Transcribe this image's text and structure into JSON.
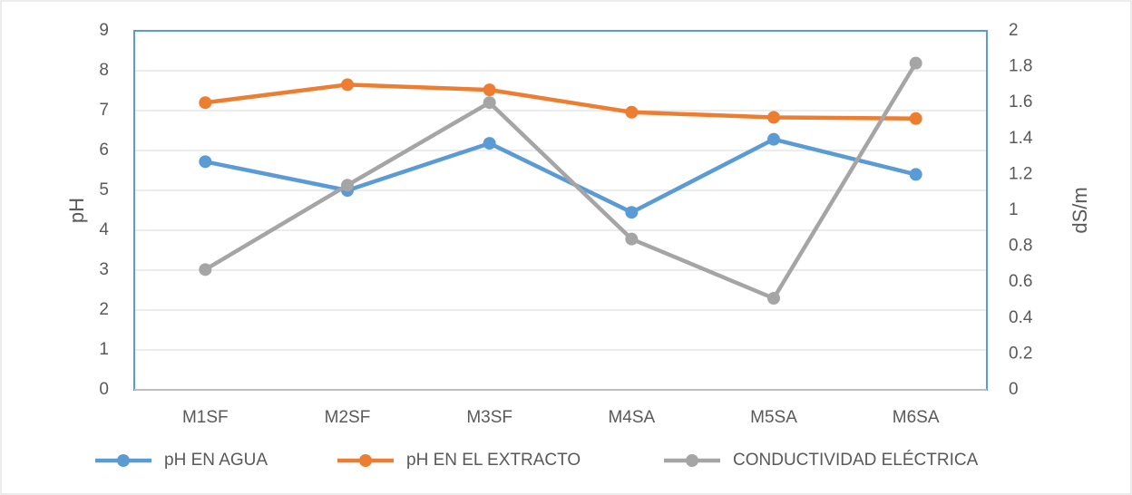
{
  "chart_data": {
    "type": "line",
    "categories": [
      "M1SF",
      "M2SF",
      "M3SF",
      "M4SA",
      "M5SA",
      "M6SA"
    ],
    "series": [
      {
        "name": "pH EN AGUA",
        "color": "#5b9bd5",
        "values": [
          5.72,
          5.0,
          6.18,
          4.45,
          6.28,
          5.4
        ]
      },
      {
        "name": "pH EN EL EXTRACTO",
        "color": "#ed7d31",
        "values": [
          7.2,
          7.65,
          7.52,
          6.96,
          6.83,
          6.8
        ]
      },
      {
        "name": "CONDUCTIVIDAD ELÉCTRICA",
        "color": "#a5a5a5",
        "axis": "y2",
        "values": [
          0.67,
          1.14,
          1.6,
          0.84,
          0.51,
          1.82
        ]
      }
    ],
    "ylabel": "pH",
    "y2label": "dS/m",
    "ylim": [
      0,
      9
    ],
    "yticks": [
      0,
      1,
      2,
      3,
      4,
      5,
      6,
      7,
      8,
      9
    ],
    "y2lim": [
      0,
      2
    ],
    "y2ticks": [
      0,
      0.2,
      0.4,
      0.6,
      0.8,
      1,
      1.2,
      1.4,
      1.6,
      1.8,
      2
    ],
    "grid": true,
    "legend": "bottom"
  }
}
